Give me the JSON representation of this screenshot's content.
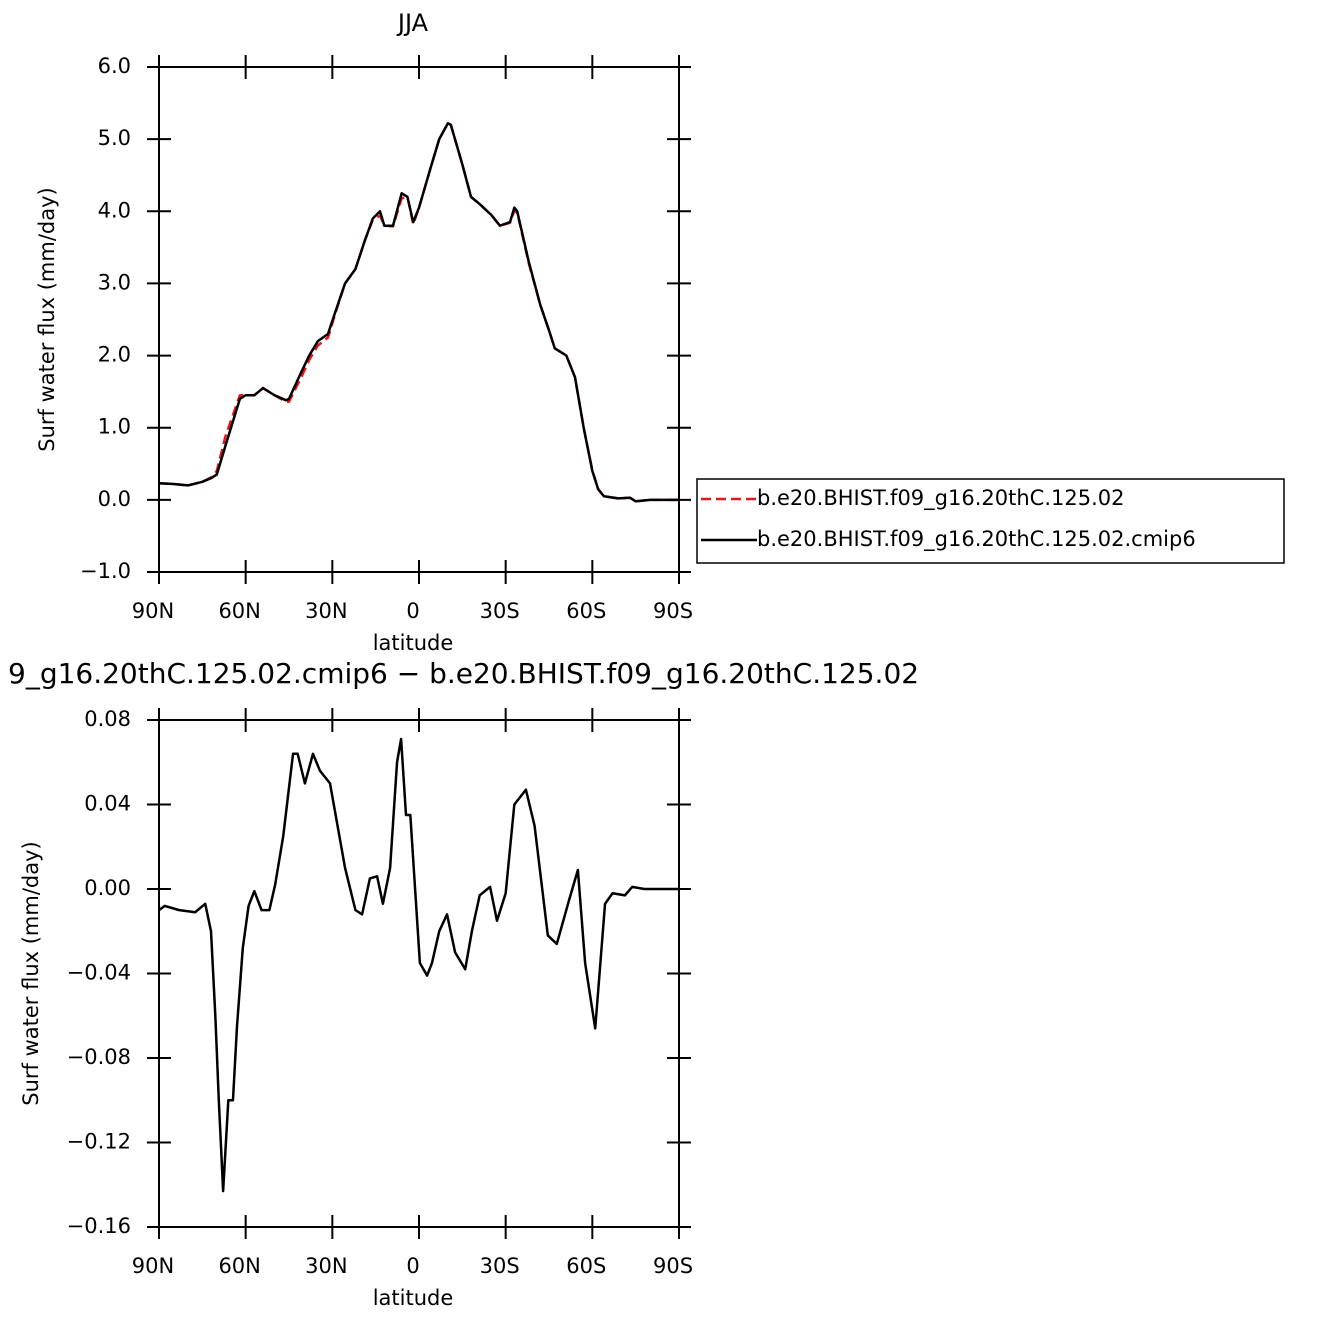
{
  "chart_data": [
    {
      "type": "line",
      "title": "JJA",
      "xlabel": "latitude",
      "ylabel": "Surf water flux (mm/day)",
      "x": [
        90,
        85,
        80,
        75,
        72,
        70,
        67,
        62,
        60,
        57,
        54,
        50,
        46,
        45,
        41,
        38,
        35,
        31.5,
        29,
        25.6,
        22,
        18.7,
        16,
        13.5,
        12,
        9,
        6,
        4,
        2,
        0,
        -4,
        -7,
        -10,
        -11,
        -15,
        -18,
        -21,
        -25,
        -28,
        -31.5,
        -33,
        -34,
        -38,
        -42,
        -45,
        -47,
        -51,
        -54,
        -57,
        -60,
        -62,
        -64,
        -69,
        -73,
        -75,
        -80,
        -90
      ],
      "series": [
        {
          "name": "b.e20.BHIST.f09_g16.20thC.125.02",
          "color": "#e8161b",
          "line_style": "dashed",
          "values": [
            0.23,
            0.22,
            0.2,
            0.25,
            0.31,
            0.4,
            0.88,
            1.45,
            1.45,
            1.45,
            1.55,
            1.45,
            1.36,
            1.36,
            1.68,
            1.94,
            2.14,
            2.25,
            2.58,
            3.0,
            3.2,
            3.6,
            3.88,
            3.94,
            3.8,
            3.79,
            4.18,
            4.2,
            3.82,
            4.05,
            4.6,
            5.0,
            5.22,
            5.2,
            4.65,
            4.2,
            4.1,
            3.95,
            3.8,
            3.84,
            4.01,
            3.98,
            3.28,
            2.7,
            2.35,
            2.1,
            2.0,
            1.7,
            1.0,
            0.41,
            0.15,
            0.05,
            0.02,
            0.03,
            -0.02,
            0.0,
            0.0
          ]
        },
        {
          "name": "b.e20.BHIST.f09_g16.20thC.125.02.cmip6",
          "color": "#000000",
          "line_style": "solid",
          "values": [
            0.23,
            0.22,
            0.2,
            0.25,
            0.3,
            0.35,
            0.75,
            1.4,
            1.45,
            1.45,
            1.55,
            1.45,
            1.38,
            1.4,
            1.75,
            2.0,
            2.2,
            2.3,
            2.6,
            3.0,
            3.2,
            3.6,
            3.9,
            4.0,
            3.8,
            3.8,
            4.25,
            4.2,
            3.85,
            4.05,
            4.6,
            5.0,
            5.22,
            5.2,
            4.65,
            4.2,
            4.1,
            3.95,
            3.8,
            3.85,
            4.05,
            4.0,
            3.3,
            2.7,
            2.35,
            2.1,
            2.0,
            1.7,
            1.0,
            0.4,
            0.15,
            0.05,
            0.02,
            0.03,
            -0.02,
            0.0,
            0.0
          ]
        }
      ],
      "xlim": [
        90,
        -90
      ],
      "xticks": [
        {
          "value": 90,
          "label": "90N"
        },
        {
          "value": 60,
          "label": "60N"
        },
        {
          "value": 30,
          "label": "30N"
        },
        0,
        {
          "value": -30,
          "label": "30S"
        },
        {
          "value": -60,
          "label": "60S"
        },
        {
          "value": -90,
          "label": "90S"
        }
      ],
      "ylim": [
        -1,
        6
      ],
      "yticks": [
        {
          "value": 6,
          "label": "6.0"
        },
        {
          "value": 5,
          "label": "5.0"
        },
        {
          "value": 4,
          "label": "4.0"
        },
        {
          "value": 3,
          "label": "3.0"
        },
        {
          "value": 2,
          "label": "2.0"
        },
        {
          "value": 1,
          "label": "1.0"
        },
        {
          "value": 0,
          "label": "0.0"
        },
        {
          "value": -1,
          "label": "−1.0"
        }
      ],
      "legend": "right"
    },
    {
      "type": "line",
      "title": "9_g16.20thC.125.02.cmip6 − b.e20.BHIST.f09_g16.20thC.125.02",
      "xlabel": "latitude",
      "ylabel": "Surf water flux (mm/day)",
      "x": [
        90,
        88,
        83,
        77.5,
        74,
        72,
        70.5,
        69.3,
        67.8,
        66,
        64.4,
        63,
        61,
        59,
        57,
        54.5,
        51.8,
        49.8,
        47,
        43.6,
        42,
        39.5,
        36.7,
        34.3,
        30.8,
        25.6,
        22,
        19.7,
        17,
        14.5,
        12.5,
        10,
        7.6,
        6.2,
        4.5,
        3,
        -0.3,
        -2.8,
        -4.5,
        -7,
        -9.7,
        -12.5,
        -16,
        -18.3,
        -21,
        -24.6,
        -27,
        -30,
        -33,
        -37,
        -40,
        -44.6,
        -47.7,
        -52,
        -55,
        -57.5,
        -61,
        -64.4,
        -67,
        -71.3,
        -73.8,
        -78,
        -90
      ],
      "values": [
        -0.01,
        -0.008,
        -0.01,
        -0.011,
        -0.007,
        -0.02,
        -0.06,
        -0.1,
        -0.143,
        -0.1,
        -0.1,
        -0.065,
        -0.028,
        -0.008,
        -0.001,
        -0.01,
        -0.01,
        0.002,
        0.025,
        0.064,
        0.064,
        0.05,
        0.064,
        0.056,
        0.05,
        0.01,
        -0.01,
        -0.012,
        0.005,
        0.006,
        -0.007,
        0.01,
        0.06,
        0.071,
        0.035,
        0.035,
        -0.035,
        -0.041,
        -0.035,
        -0.02,
        -0.012,
        -0.03,
        -0.038,
        -0.02,
        -0.003,
        0.001,
        -0.015,
        -0.002,
        0.04,
        0.047,
        0.03,
        -0.022,
        -0.026,
        -0.005,
        0.009,
        -0.035,
        -0.066,
        -0.007,
        -0.002,
        -0.003,
        0.001,
        0,
        0
      ],
      "color": "#000000",
      "xlim": [
        90,
        -90
      ],
      "xticks": [
        {
          "value": 90,
          "label": "90N"
        },
        {
          "value": 60,
          "label": "60N"
        },
        {
          "value": 30,
          "label": "30N"
        },
        0,
        {
          "value": -30,
          "label": "30S"
        },
        {
          "value": -60,
          "label": "60S"
        },
        {
          "value": -90,
          "label": "90S"
        }
      ],
      "ylim": [
        -0.16,
        0.08
      ],
      "yticks": [
        {
          "value": 0.08,
          "label": "0.08"
        },
        {
          "value": 0.04,
          "label": "0.04"
        },
        {
          "value": 0,
          "label": "0.00"
        },
        {
          "value": -0.04,
          "label": "−0.04"
        },
        {
          "value": -0.08,
          "label": "−0.08"
        },
        {
          "value": -0.12,
          "label": "−0.12"
        },
        {
          "value": -0.16,
          "label": "−0.16"
        }
      ]
    }
  ]
}
